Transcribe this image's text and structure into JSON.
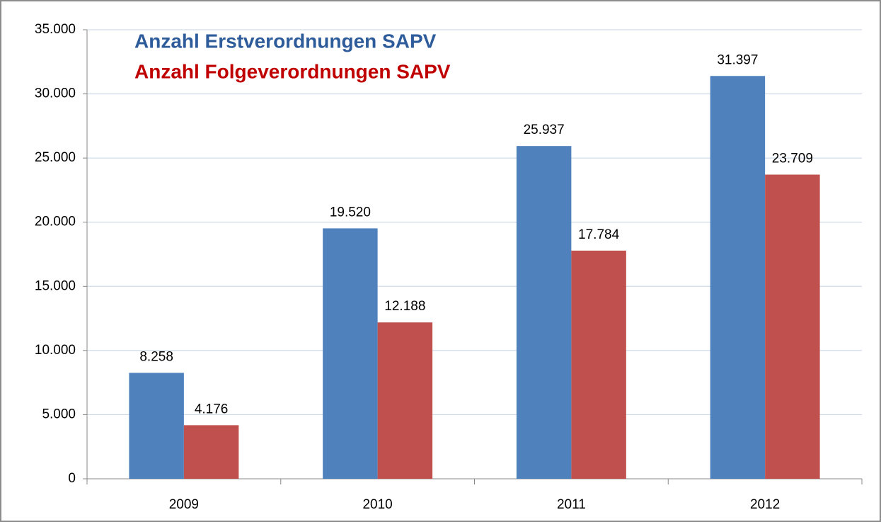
{
  "chart_data": {
    "type": "bar",
    "categories": [
      "2009",
      "2010",
      "2011",
      "2012"
    ],
    "series": [
      {
        "name": "Anzahl Erstverordnungen SAPV",
        "color": "#4f81bd",
        "text_color": "#2e5c9a",
        "values": [
          8258,
          19520,
          25937,
          31397
        ],
        "value_labels": [
          "8.258",
          "19.520",
          "25.937",
          "31.397"
        ]
      },
      {
        "name": "Anzahl Folgeverordnungen SAPV",
        "color": "#c0504d",
        "text_color": "#c00000",
        "values": [
          4176,
          12188,
          17784,
          23709
        ],
        "value_labels": [
          "4.176",
          "12.188",
          "17.784",
          "23.709"
        ]
      }
    ],
    "ylim": [
      0,
      35000
    ],
    "yticks": [
      0,
      {
        "value": 5000,
        "label": "5.000"
      },
      {
        "value": 10000,
        "label": "10.000"
      },
      {
        "value": 15000,
        "label": "15.000"
      },
      {
        "value": 20000,
        "label": "20.000"
      },
      {
        "value": 25000,
        "label": "25.000"
      },
      {
        "value": 30000,
        "label": "30.000"
      },
      {
        "value": 35000,
        "label": "35.000"
      }
    ],
    "grid": true,
    "legend": "top-left"
  }
}
